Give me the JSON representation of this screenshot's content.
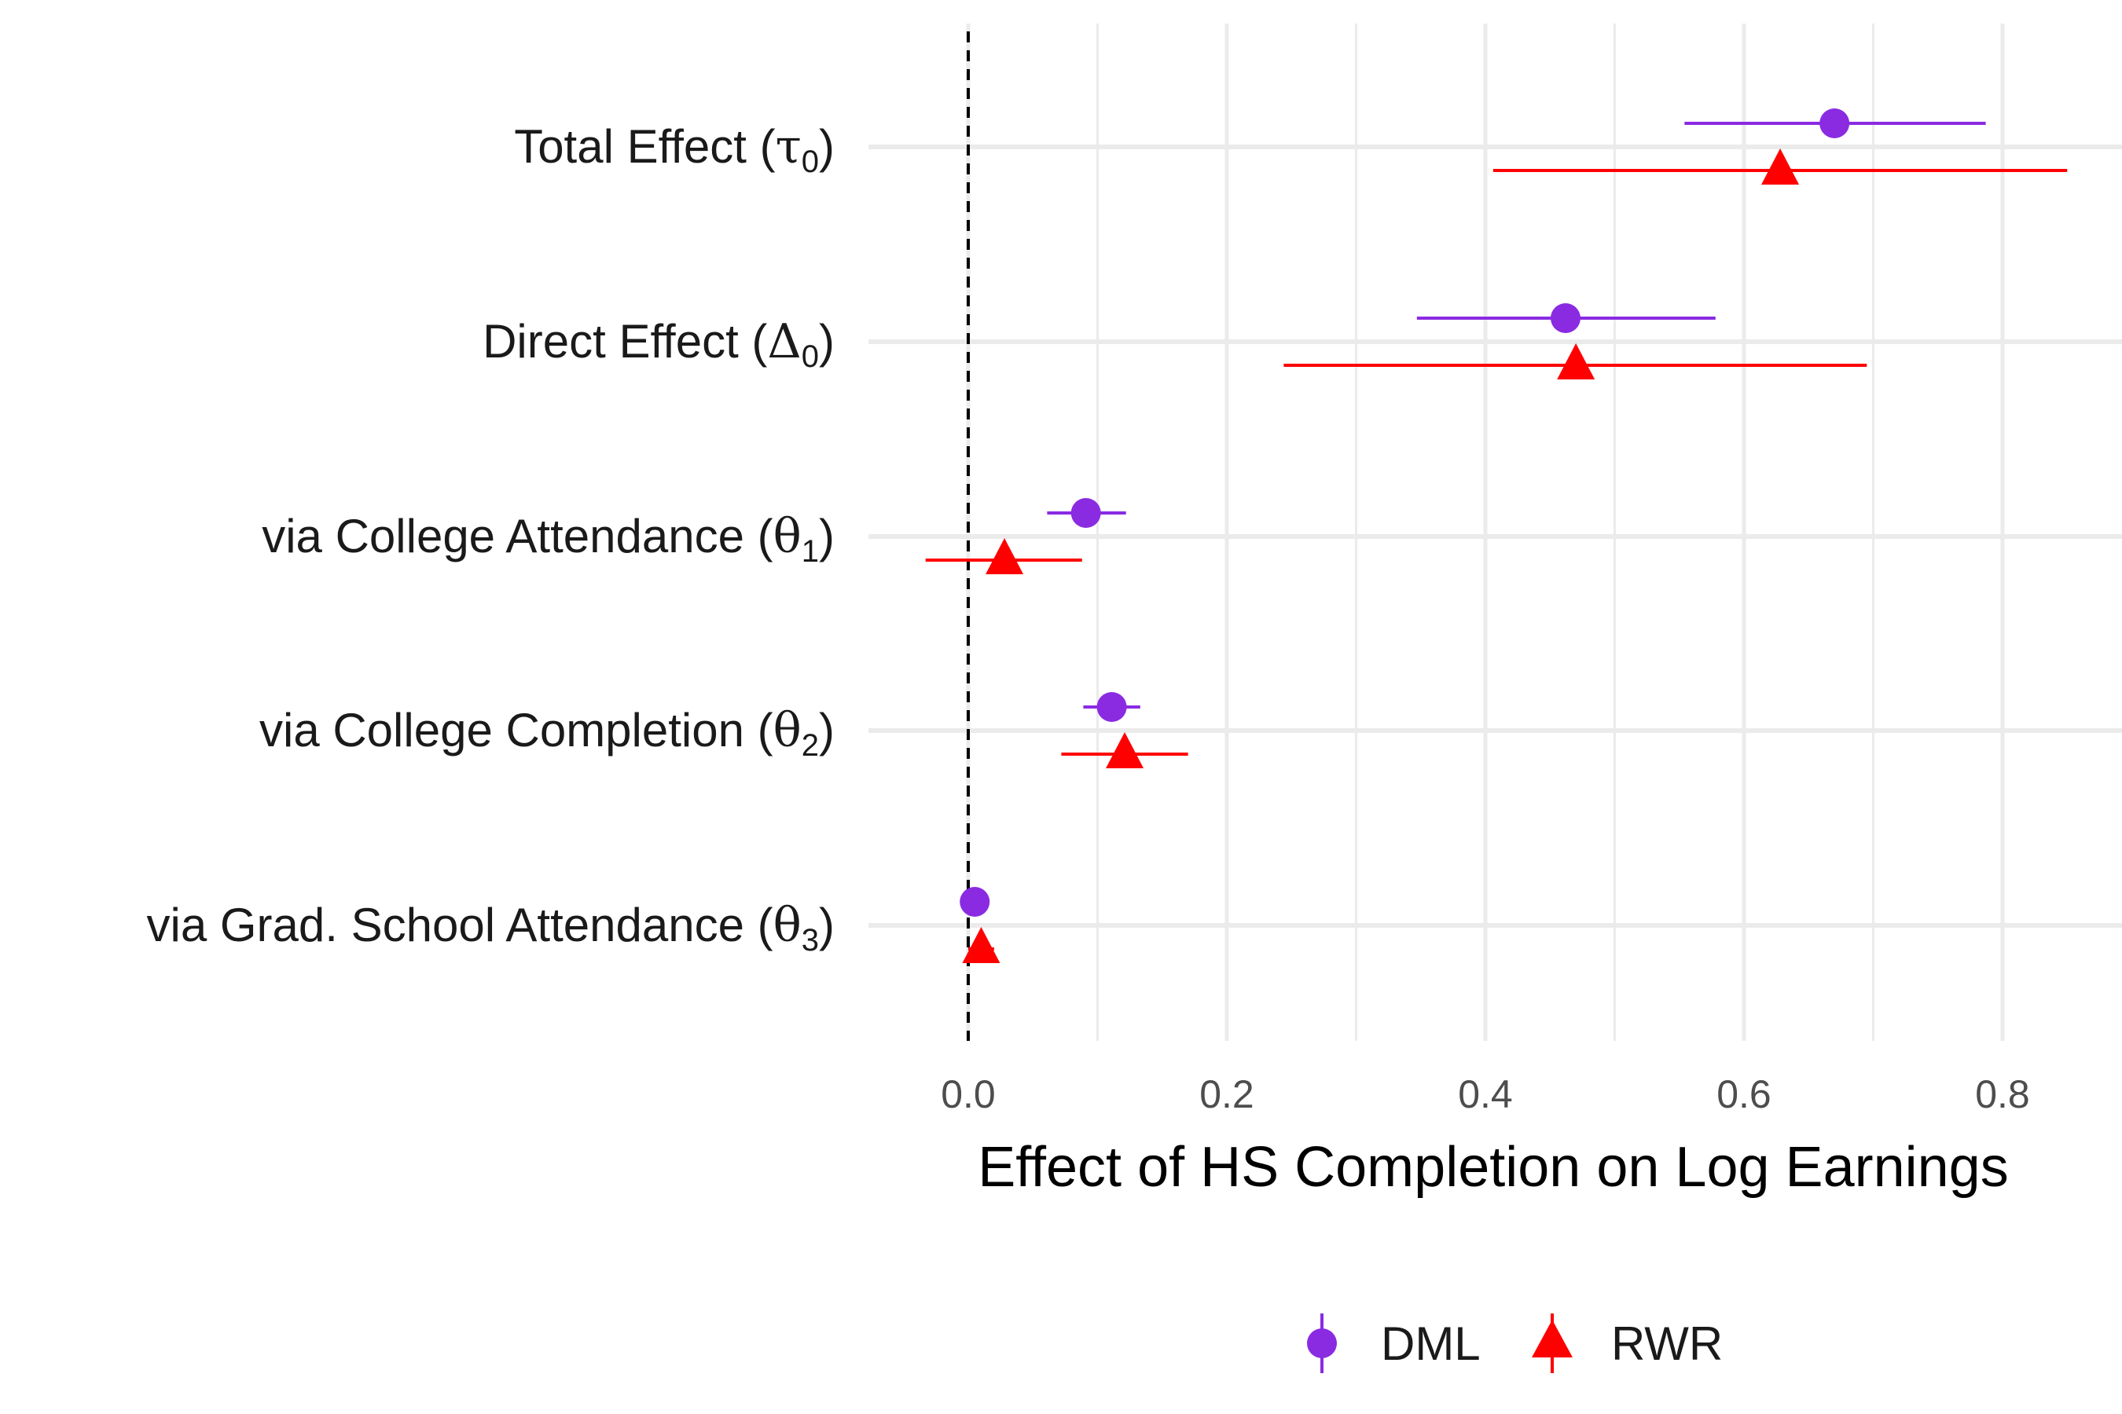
{
  "chart_data": {
    "type": "scatter",
    "subtype": "coefficient-plot with horizontal error bars",
    "xlabel": "Effect of HS Completion on Log Earnings",
    "ylabel": "",
    "xlim": [
      -0.1,
      0.9
    ],
    "x_ticks": [
      "0.0",
      "0.2",
      "0.4",
      "0.6",
      "0.8"
    ],
    "x_tick_values": [
      0.0,
      0.2,
      0.4,
      0.6,
      0.8
    ],
    "reference_line": {
      "x": 0.0,
      "style": "dashed"
    },
    "grid": true,
    "legend_position": "bottom",
    "categories": [
      {
        "label": "Total Effect (",
        "symbol": "τ",
        "sub": "0",
        "close": ")"
      },
      {
        "label": "Direct Effect (",
        "symbol": "Δ",
        "sub": "0",
        "close": ")"
      },
      {
        "label": "via College Attendance (",
        "symbol": "θ",
        "sub": "1",
        "close": ")"
      },
      {
        "label": "via College Completion (",
        "symbol": "θ",
        "sub": "2",
        "close": ")"
      },
      {
        "label": "via Grad. School Attendance (",
        "symbol": "θ",
        "sub": "3",
        "close": ")"
      }
    ],
    "series": [
      {
        "name": "DML",
        "color": "#8A2BE2",
        "marker": "circle",
        "estimates": [
          0.67,
          0.462,
          0.091,
          0.111,
          0.005
        ],
        "lower": [
          0.554,
          0.347,
          0.061,
          0.089,
          0.0
        ],
        "upper": [
          0.787,
          0.578,
          0.122,
          0.133,
          0.01
        ]
      },
      {
        "name": "RWR",
        "color": "#FF0000",
        "marker": "triangle",
        "estimates": [
          0.628,
          0.47,
          0.028,
          0.121,
          0.01
        ],
        "lower": [
          0.406,
          0.244,
          -0.033,
          0.072,
          0.0
        ],
        "upper": [
          0.85,
          0.695,
          0.088,
          0.17,
          0.02
        ]
      }
    ]
  }
}
